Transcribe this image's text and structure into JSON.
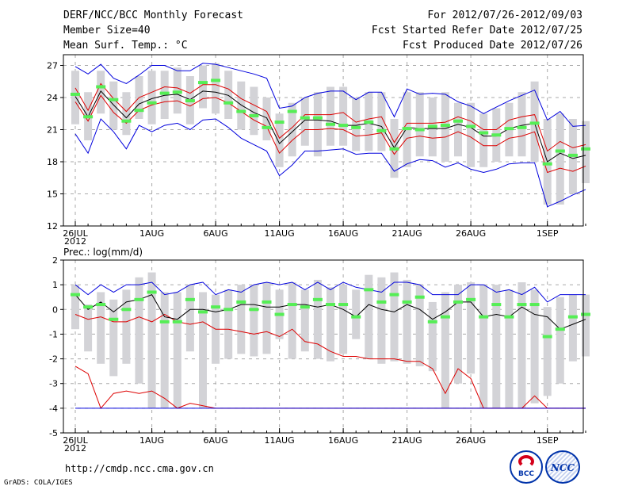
{
  "header": {
    "title": "DERF/NCC/BCC Monthly Forecast",
    "member_size": "Member Size=40",
    "variable": "Mean Surf. Temp.: °C",
    "period": "For 2012/07/26-2012/09/03",
    "refer_date": "Fcst Started Refer Date 2012/07/25",
    "produced_date": "Fcst Produced Date 2012/07/26"
  },
  "footer": {
    "url": "http://cmdp.ncc.cma.gov.cn",
    "grads": "GrADS: COLA/IGES",
    "logo_bcc": "BCC",
    "logo_ncc": "NCC"
  },
  "chart_data": [
    {
      "type": "line",
      "title": "Mean Surf. Temp.: °C",
      "ylim": [
        12,
        28
      ],
      "yticks": [
        12,
        15,
        18,
        21,
        24,
        27
      ],
      "xticks": [
        {
          "day": 0,
          "label": "26JUL",
          "sub": "2012"
        },
        {
          "day": 6,
          "label": "1AUG"
        },
        {
          "day": 11,
          "label": "6AUG"
        },
        {
          "day": 16,
          "label": "11AUG"
        },
        {
          "day": 21,
          "label": "16AUG"
        },
        {
          "day": 26,
          "label": "21AUG"
        },
        {
          "day": 31,
          "label": "26AUG"
        },
        {
          "day": 37,
          "label": "1SEP"
        }
      ],
      "series": [
        {
          "name": "max",
          "color": "#0000dd",
          "values": [
            26.9,
            26.2,
            27.1,
            25.8,
            25.3,
            26.1,
            27.0,
            27.0,
            26.5,
            26.5,
            27.2,
            27.1,
            26.8,
            26.5,
            26.2,
            25.8,
            23.0,
            23.2,
            24.0,
            24.4,
            24.6,
            24.6,
            23.8,
            24.5,
            24.5,
            22.2,
            24.8,
            24.3,
            24.4,
            24.3,
            23.6,
            23.2,
            22.5,
            23.1,
            23.7,
            24.2,
            24.7,
            21.9,
            22.7,
            21.3,
            21.4
          ]
        },
        {
          "name": "upper",
          "color": "#dd0000",
          "values": [
            24.9,
            22.8,
            25.3,
            23.9,
            22.7,
            24.0,
            24.5,
            25.0,
            24.9,
            24.4,
            25.2,
            25.2,
            24.8,
            23.9,
            23.3,
            22.7,
            20.2,
            21.2,
            22.4,
            22.4,
            22.4,
            22.6,
            21.7,
            22.0,
            22.2,
            19.8,
            21.6,
            21.6,
            21.6,
            21.7,
            22.2,
            21.8,
            21.0,
            21.0,
            21.9,
            22.2,
            22.4,
            19.0,
            19.9,
            19.3,
            19.6
          ]
        },
        {
          "name": "mean",
          "color": "#000000",
          "values": [
            24.1,
            22.2,
            24.6,
            23.3,
            22.1,
            23.4,
            23.9,
            24.2,
            24.3,
            23.8,
            24.6,
            24.5,
            24.2,
            23.3,
            22.6,
            22.1,
            19.7,
            20.8,
            21.9,
            21.9,
            21.8,
            21.4,
            21.4,
            21.6,
            21.3,
            19.3,
            21.2,
            21.1,
            21.1,
            21.1,
            21.5,
            21.2,
            20.4,
            20.4,
            21.1,
            21.4,
            21.6,
            18.0,
            18.8,
            18.3,
            18.6
          ]
        },
        {
          "name": "lower",
          "color": "#dd0000",
          "values": [
            23.6,
            21.8,
            24.2,
            22.6,
            21.6,
            22.8,
            23.3,
            23.6,
            23.7,
            23.2,
            23.9,
            24.0,
            23.5,
            22.7,
            21.9,
            21.3,
            18.8,
            20.0,
            21.0,
            21.0,
            21.1,
            21.0,
            20.4,
            20.5,
            20.7,
            18.7,
            20.2,
            20.4,
            20.2,
            20.3,
            20.8,
            20.3,
            19.5,
            19.5,
            20.2,
            20.4,
            20.8,
            17.0,
            17.4,
            17.1,
            17.6
          ]
        },
        {
          "name": "min",
          "color": "#0000dd",
          "values": [
            20.6,
            18.8,
            22.0,
            20.8,
            19.2,
            21.4,
            20.8,
            21.4,
            21.6,
            21.0,
            21.9,
            22.0,
            21.2,
            20.2,
            19.6,
            19.0,
            16.7,
            17.7,
            19.0,
            19.0,
            19.1,
            19.2,
            18.7,
            18.8,
            18.8,
            17.1,
            17.8,
            18.2,
            18.1,
            17.5,
            17.9,
            17.3,
            17.0,
            17.3,
            17.8,
            17.9,
            17.9,
            13.8,
            14.3,
            14.9,
            15.4
          ]
        }
      ],
      "bars": {
        "color": "#d3d3d7",
        "top": [
          26.5,
          24.5,
          26.5,
          25.5,
          24.5,
          26.0,
          26.5,
          26.5,
          26.8,
          26.0,
          27.0,
          27.2,
          26.5,
          25.5,
          25.0,
          24.0,
          22.5,
          23.5,
          24.0,
          24.5,
          25.0,
          25.0,
          24.0,
          24.5,
          24.5,
          22.0,
          24.5,
          24.5,
          24.0,
          24.5,
          23.5,
          23.5,
          22.5,
          23.0,
          23.5,
          24.5,
          25.5,
          22.0,
          22.5,
          22.0,
          21.8
        ],
        "bottom": [
          21.5,
          20.0,
          22.5,
          21.0,
          20.5,
          22.0,
          21.5,
          22.0,
          22.5,
          21.5,
          23.0,
          22.5,
          22.0,
          21.0,
          20.5,
          20.0,
          17.5,
          18.5,
          19.5,
          18.5,
          19.5,
          19.5,
          19.0,
          19.0,
          19.0,
          16.5,
          17.5,
          18.5,
          18.5,
          18.0,
          18.5,
          17.5,
          17.5,
          18.0,
          18.5,
          18.5,
          18.0,
          14.0,
          14.0,
          15.0,
          16.0
        ]
      },
      "markers": {
        "color": "#55ee55",
        "values": [
          24.3,
          22.2,
          25.0,
          23.8,
          21.8,
          22.8,
          23.5,
          24.4,
          24.5,
          23.7,
          25.4,
          25.6,
          23.5,
          22.7,
          22.3,
          21.2,
          21.7,
          22.7,
          22.1,
          22.1,
          21.5,
          21.4,
          21.2,
          21.7,
          20.9,
          19.2,
          21.1,
          21.0,
          21.3,
          21.4,
          21.8,
          21.3,
          20.7,
          20.5,
          21.1,
          21.2,
          21.6,
          17.8,
          19.0,
          18.6,
          19.2
        ]
      }
    },
    {
      "type": "line",
      "title": "Prec.: log(mm/d)",
      "ylim": [
        -5,
        2
      ],
      "yticks": [
        -5,
        -4,
        -3,
        -2,
        -1,
        0,
        1,
        2
      ],
      "xticks": [
        {
          "day": 0,
          "label": "26JUL",
          "sub": "2012"
        },
        {
          "day": 6,
          "label": "1AUG"
        },
        {
          "day": 11,
          "label": "6AUG"
        },
        {
          "day": 16,
          "label": "11AUG"
        },
        {
          "day": 21,
          "label": "16AUG"
        },
        {
          "day": 26,
          "label": "21AUG"
        },
        {
          "day": 31,
          "label": "26AUG"
        },
        {
          "day": 37,
          "label": "1SEP"
        }
      ],
      "series": [
        {
          "name": "max",
          "color": "#0000dd",
          "values": [
            1.0,
            0.6,
            1.0,
            0.7,
            1.0,
            1.0,
            1.1,
            0.6,
            0.7,
            1.0,
            1.1,
            0.6,
            0.8,
            0.7,
            1.0,
            1.1,
            1.0,
            1.1,
            0.8,
            1.1,
            0.8,
            1.1,
            0.9,
            0.8,
            0.7,
            1.1,
            1.1,
            1.0,
            0.6,
            0.6,
            0.6,
            1.0,
            1.0,
            0.7,
            0.8,
            0.6,
            0.9,
            0.3,
            0.6,
            0.6,
            0.6
          ]
        },
        {
          "name": "upper",
          "color": "#dd0000",
          "values": [
            -0.2,
            -0.4,
            -0.3,
            -0.5,
            -0.5,
            -0.3,
            -0.5,
            -0.2,
            -0.5,
            -0.6,
            -0.5,
            -0.8,
            -0.8,
            -0.9,
            -1.0,
            -0.9,
            -1.1,
            -0.8,
            -1.3,
            -1.4,
            -1.7,
            -1.9,
            -1.9,
            -2.0,
            -2.0,
            -2.0,
            -2.1,
            -2.1,
            -2.4,
            -3.4,
            -2.4,
            -2.8,
            -4.0,
            -4.0,
            -4.0,
            -4.0,
            -3.5,
            -4.0,
            -4.0,
            -4.0,
            -4.0
          ]
        },
        {
          "name": "mean",
          "color": "#000000",
          "values": [
            0.6,
            0.0,
            0.3,
            -0.1,
            0.3,
            0.4,
            0.6,
            -0.3,
            -0.4,
            0.0,
            0.0,
            -0.1,
            0.0,
            0.2,
            0.2,
            0.1,
            0.1,
            0.2,
            0.2,
            0.1,
            0.2,
            0.0,
            -0.3,
            0.2,
            0.0,
            -0.1,
            0.2,
            0.0,
            -0.4,
            -0.1,
            0.3,
            0.3,
            -0.3,
            -0.2,
            -0.3,
            0.1,
            -0.2,
            -0.3,
            -0.8,
            -0.6,
            -0.4
          ]
        },
        {
          "name": "lower",
          "color": "#dd0000",
          "values": [
            -2.3,
            -2.6,
            -4.0,
            -3.4,
            -3.3,
            -3.4,
            -3.3,
            -3.6,
            -4.0,
            -3.8,
            -3.9,
            -4.0,
            -4.0,
            -4.0,
            -4.0,
            -4.0,
            -4.0,
            -4.0,
            -4.0,
            -4.0,
            -4.0,
            -4.0,
            -4.0,
            -4.0,
            -4.0,
            -4.0,
            -4.0,
            -4.0,
            -4.0,
            -4.0,
            -4.0,
            -4.0,
            -4.0,
            -4.0,
            -4.0,
            -4.0,
            -4.0,
            -4.0,
            -4.0,
            -4.0,
            -4.0
          ]
        },
        {
          "name": "min",
          "color": "#0000dd",
          "values": [
            -4.0,
            -4.0,
            -4.0,
            -4.0,
            -4.0,
            -4.0,
            -4.0,
            -4.0,
            -4.0,
            -4.0,
            -4.0,
            -4.0,
            -4.0,
            -4.0,
            -4.0,
            -4.0,
            -4.0,
            -4.0,
            -4.0,
            -4.0,
            -4.0,
            -4.0,
            -4.0,
            -4.0,
            -4.0,
            -4.0,
            -4.0,
            -4.0,
            -4.0,
            -4.0,
            -4.0,
            -4.0,
            -4.0,
            -4.0,
            -4.0,
            -4.0,
            -4.0,
            -4.0,
            -4.0,
            -4.0,
            -4.0
          ]
        }
      ],
      "bars": {
        "color": "#d3d3d7",
        "top": [
          1.0,
          0.2,
          0.7,
          0.4,
          0.8,
          1.3,
          1.5,
          0.7,
          0.7,
          1.0,
          0.7,
          0.6,
          0.8,
          1.0,
          1.0,
          1.1,
          0.8,
          1.1,
          0.8,
          1.2,
          0.9,
          1.0,
          0.8,
          1.4,
          1.3,
          1.5,
          1.2,
          1.0,
          0.3,
          0.7,
          1.0,
          1.1,
          1.0,
          1.0,
          0.8,
          1.1,
          0.8,
          0.1,
          0.5,
          0.6,
          0.6
        ],
        "bottom": [
          -0.8,
          -1.7,
          -2.2,
          -2.7,
          -2.2,
          -3.0,
          -4.0,
          -4.0,
          -4.0,
          -1.7,
          -4.0,
          -2.2,
          -2.0,
          -1.8,
          -1.9,
          -1.8,
          -1.2,
          -2.0,
          -1.7,
          -2.0,
          -2.1,
          -1.8,
          -1.2,
          -2.0,
          -2.2,
          -2.1,
          -2.2,
          -2.3,
          -2.5,
          -4.0,
          -3.0,
          -2.6,
          -4.0,
          -4.0,
          -4.0,
          -4.0,
          -3.8,
          -3.5,
          -3.0,
          -2.1,
          -1.9
        ]
      },
      "markers": {
        "color": "#55ee55",
        "values": [
          0.6,
          0.1,
          0.2,
          -0.4,
          0.0,
          0.4,
          0.7,
          -0.5,
          -0.5,
          0.4,
          -0.1,
          0.1,
          0.0,
          0.3,
          0.0,
          0.3,
          -0.2,
          0.2,
          0.1,
          0.4,
          0.2,
          0.2,
          -0.3,
          0.8,
          0.3,
          0.6,
          0.3,
          0.5,
          -0.5,
          -0.3,
          0.3,
          0.4,
          -0.3,
          0.2,
          -0.3,
          0.2,
          0.2,
          -1.1,
          -0.8,
          -0.3,
          -0.2
        ]
      }
    }
  ]
}
